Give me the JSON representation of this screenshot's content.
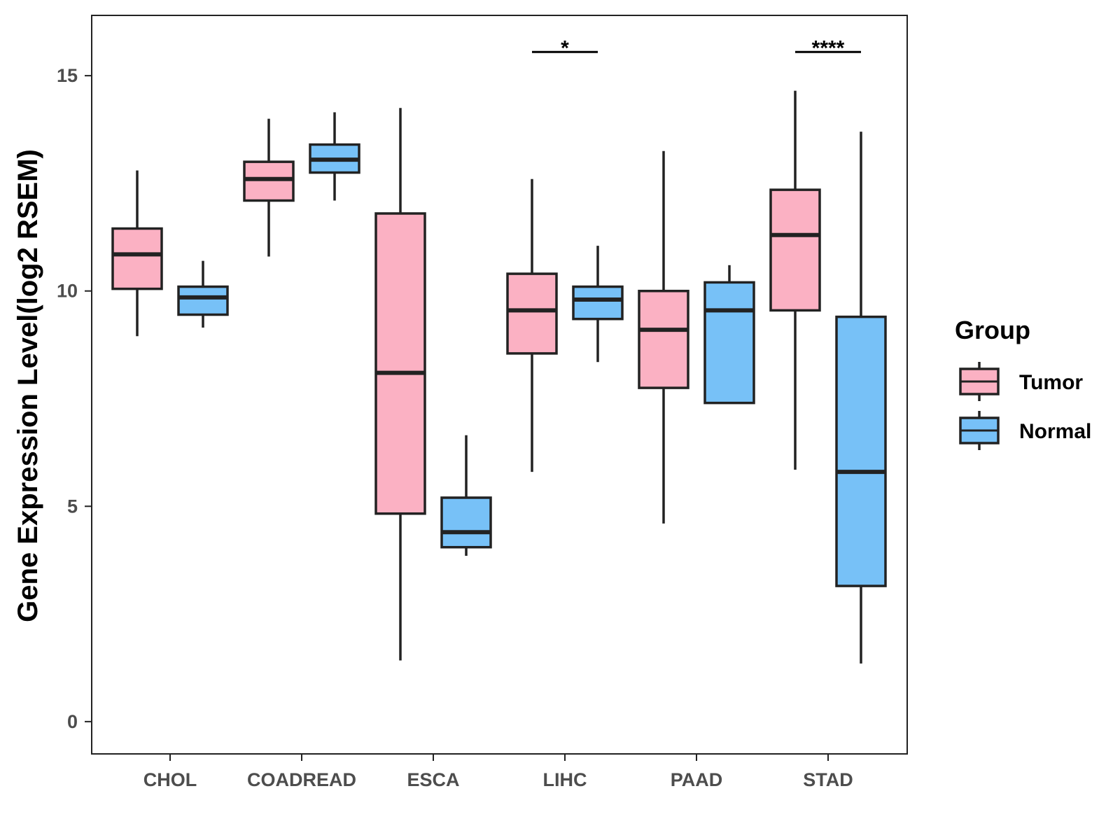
{
  "chart_data": {
    "type": "boxplot",
    "title": "",
    "xlabel": "",
    "ylabel": "Gene Expression Level(log2 RSEM)",
    "ylim": [
      -0.75,
      16.4
    ],
    "yticks": [
      0,
      5,
      10,
      15
    ],
    "categories": [
      "CHOL",
      "COADREAD",
      "ESCA",
      "LIHC",
      "PAAD",
      "STAD"
    ],
    "legend": {
      "title": "Group",
      "position": "right"
    },
    "series": [
      {
        "name": "Tumor",
        "color": "#FBB1C3",
        "boxes": [
          {
            "category": "CHOL",
            "whisker_low": 8.95,
            "q1": 10.05,
            "median": 10.85,
            "q3": 11.45,
            "whisker_high": 12.8
          },
          {
            "category": "COADREAD",
            "whisker_low": 10.8,
            "q1": 12.1,
            "median": 12.6,
            "q3": 13.0,
            "whisker_high": 14.0
          },
          {
            "category": "ESCA",
            "whisker_low": 1.42,
            "q1": 4.83,
            "median": 8.1,
            "q3": 11.8,
            "whisker_high": 14.25
          },
          {
            "category": "LIHC",
            "whisker_low": 5.8,
            "q1": 8.55,
            "median": 9.55,
            "q3": 10.4,
            "whisker_high": 12.6
          },
          {
            "category": "PAAD",
            "whisker_low": 4.6,
            "q1": 7.75,
            "median": 9.1,
            "q3": 10.0,
            "whisker_high": 13.25
          },
          {
            "category": "STAD",
            "whisker_low": 5.85,
            "q1": 9.55,
            "median": 11.3,
            "q3": 12.35,
            "whisker_high": 14.65
          }
        ]
      },
      {
        "name": "Normal",
        "color": "#77C1F7",
        "boxes": [
          {
            "category": "CHOL",
            "whisker_low": 9.15,
            "q1": 9.45,
            "median": 9.85,
            "q3": 10.1,
            "whisker_high": 10.7
          },
          {
            "category": "COADREAD",
            "whisker_low": 12.1,
            "q1": 12.75,
            "median": 13.05,
            "q3": 13.4,
            "whisker_high": 14.15
          },
          {
            "category": "ESCA",
            "whisker_low": 3.85,
            "q1": 4.05,
            "median": 4.4,
            "q3": 5.2,
            "whisker_high": 6.65
          },
          {
            "category": "LIHC",
            "whisker_low": 8.35,
            "q1": 9.35,
            "median": 9.8,
            "q3": 10.1,
            "whisker_high": 11.05
          },
          {
            "category": "PAAD",
            "whisker_low": 7.4,
            "q1": 7.4,
            "median": 9.55,
            "q3": 10.2,
            "whisker_high": 10.6
          },
          {
            "category": "STAD",
            "whisker_low": 1.35,
            "q1": 3.15,
            "median": 5.8,
            "q3": 9.4,
            "whisker_high": 13.7
          }
        ]
      }
    ],
    "annotations": [
      {
        "category": "LIHC",
        "label": "*",
        "y": 15.55
      },
      {
        "category": "STAD",
        "label": "****",
        "y": 15.55
      }
    ]
  }
}
